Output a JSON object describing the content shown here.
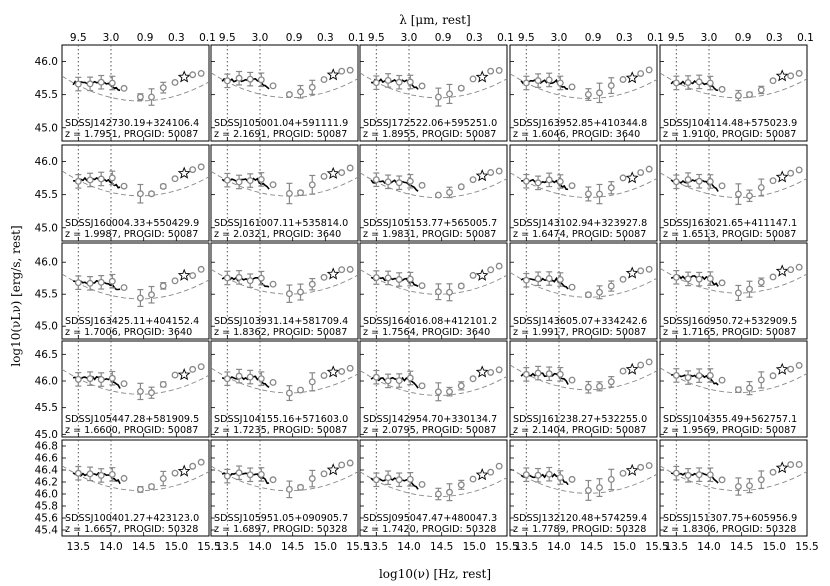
{
  "chart_data": {
    "type": "scatter",
    "layout": {
      "rows": 5,
      "cols": 5
    },
    "x_axis": {
      "label": "log$_{10}$($\\nu$) [Hz, rest]",
      "label_text": "log10(ν) [Hz, rest]",
      "range": [
        13.25,
        15.5
      ],
      "ticks": [
        "13.5",
        "14.0",
        "14.5",
        "15.0",
        "15.5"
      ],
      "tick_values": [
        13.5,
        14.0,
        14.5,
        15.0,
        15.5
      ]
    },
    "top_axis": {
      "label": "λ [μm, rest]",
      "ticks": [
        "9.5",
        "3.0",
        "0.9",
        "0.3",
        "0.1"
      ],
      "tick_values": [
        9.5,
        3.0,
        0.9,
        0.3,
        0.1
      ]
    },
    "y_axis": {
      "label": "log10(νLν) [erg/s, rest]",
      "rows": [
        {
          "range": [
            44.8,
            46.25
          ],
          "ticks": [
            "45.0",
            "45.5",
            "46.0"
          ],
          "tick_values": [
            45.0,
            45.5,
            46.0
          ]
        },
        {
          "range": [
            44.8,
            46.25
          ],
          "ticks": [
            "45.0",
            "45.5",
            "46.0"
          ],
          "tick_values": [
            45.0,
            45.5,
            46.0
          ]
        },
        {
          "range": [
            44.8,
            46.3
          ],
          "ticks": [
            "45.0",
            "45.5",
            "46.0"
          ],
          "tick_values": [
            45.0,
            45.5,
            46.0
          ]
        },
        {
          "range": [
            44.95,
            46.75
          ],
          "ticks": [
            "45.0",
            "45.5",
            "46.0",
            "46.5"
          ],
          "tick_values": [
            45.0,
            45.5,
            46.0,
            46.5
          ]
        },
        {
          "range": [
            45.3,
            46.9
          ],
          "ticks": [
            "45.4",
            "45.6",
            "45.8",
            "46.0",
            "46.2",
            "46.4",
            "46.6",
            "46.8"
          ],
          "tick_values": [
            45.4,
            45.6,
            45.8,
            46.0,
            46.2,
            46.4,
            46.6,
            46.8
          ]
        }
      ]
    },
    "vertical_lines": [
      13.5,
      14.0
    ],
    "panels": [
      {
        "name": "SDSSJ142730.19+324106.4",
        "z_label": "z = 1.7951, PROGID: 50087"
      },
      {
        "name": "SDSSJ105001.04+591111.9",
        "z_label": "z = 2.1691, PROGID: 50087"
      },
      {
        "name": "SDSSJ172522.06+595251.0",
        "z_label": "z = 1.8955, PROGID: 50087"
      },
      {
        "name": "SDSSJ163952.85+410344.8",
        "z_label": "z = 1.6046, PROGID: 3640"
      },
      {
        "name": "SDSSJ104114.48+575023.9",
        "z_label": "z = 1.9100, PROGID: 50087"
      },
      {
        "name": "SDSSJ160004.33+550429.9",
        "z_label": "z = 1.9987, PROGID: 50087"
      },
      {
        "name": "SDSSJ161007.11+535814.0",
        "z_label": "z = 2.0321, PROGID: 3640"
      },
      {
        "name": "SDSSJ105153.77+565005.7",
        "z_label": "z = 1.9831, PROGID: 50087"
      },
      {
        "name": "SDSSJ143102.94+323927.8",
        "z_label": "z = 1.6474, PROGID: 50087"
      },
      {
        "name": "SDSSJ163021.65+411147.1",
        "z_label": "z = 1.6513, PROGID: 50087"
      },
      {
        "name": "SDSSJ163425.11+404152.4",
        "z_label": "z = 1.7006, PROGID: 3640"
      },
      {
        "name": "SDSSJ103931.14+581709.4",
        "z_label": "z = 1.8362, PROGID: 50087"
      },
      {
        "name": "SDSSJ164016.08+412101.2",
        "z_label": "z = 1.7564, PROGID: 3640"
      },
      {
        "name": "SDSSJ143605.07+334242.6",
        "z_label": "z = 1.9917, PROGID: 50087"
      },
      {
        "name": "SDSSJ160950.72+532909.5",
        "z_label": "z = 1.7165, PROGID: 50087"
      },
      {
        "name": "SDSSJ105447.28+581909.5",
        "z_label": "z = 1.6600, PROGID: 50087"
      },
      {
        "name": "SDSSJ104155.16+571603.0",
        "z_label": "z = 1.7235, PROGID: 50087"
      },
      {
        "name": "SDSSJ142954.70+330134.7",
        "z_label": "z = 2.0795, PROGID: 50087"
      },
      {
        "name": "SDSSJ161238.27+532255.0",
        "z_label": "z = 2.1404, PROGID: 50087"
      },
      {
        "name": "SDSSJ104355.49+562757.1",
        "z_label": "z = 1.9569, PROGID: 50087"
      },
      {
        "name": "SDSSJ100401.27+423123.0",
        "z_label": "z = 1.6657, PROGID: 50328"
      },
      {
        "name": "SDSSJ105951.05+090905.7",
        "z_label": "z = 1.6897, PROGID: 50328"
      },
      {
        "name": "SDSSJ095047.47+480047.3",
        "z_label": "z = 1.7420, PROGID: 50328"
      },
      {
        "name": "SDSSJ132120.48+574259.4",
        "z_label": "z = 1.7789, PROGID: 50328"
      },
      {
        "name": "SDSSJ151307.75+605956.9",
        "z_label": "z = 1.8306, PROGID: 50328"
      }
    ]
  }
}
